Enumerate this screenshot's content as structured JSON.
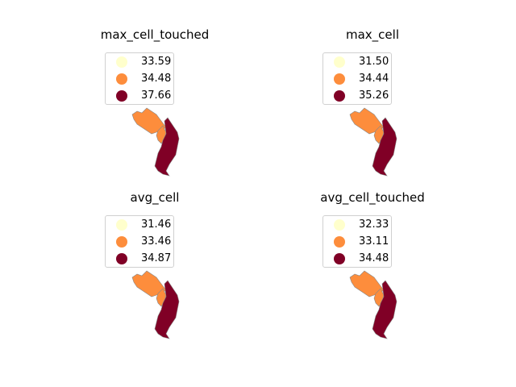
{
  "colors": {
    "low": "#ffffcc",
    "mid": "#fd8d3c",
    "high": "#800026",
    "border": "#888888"
  },
  "panels": [
    {
      "title": "max_cell_touched",
      "legend": [
        "33.59",
        "34.48",
        "37.66"
      ],
      "region_classes": {
        "north": "mid",
        "middle": "mid",
        "south": "high"
      }
    },
    {
      "title": "max_cell",
      "legend": [
        "31.50",
        "34.44",
        "35.26"
      ],
      "region_classes": {
        "north": "mid",
        "middle": "mid",
        "south": "high"
      }
    },
    {
      "title": "avg_cell",
      "legend": [
        "31.46",
        "33.46",
        "34.87"
      ],
      "region_classes": {
        "north": "mid",
        "middle": "mid",
        "south": "high"
      }
    },
    {
      "title": "avg_cell_touched",
      "legend": [
        "32.33",
        "33.11",
        "34.48"
      ],
      "region_classes": {
        "north": "mid",
        "middle": "mid",
        "south": "high"
      }
    }
  ]
}
